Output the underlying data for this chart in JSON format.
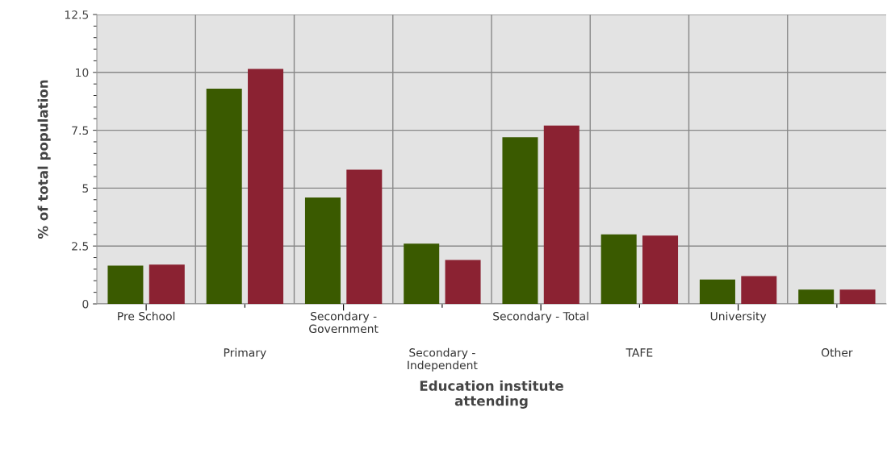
{
  "chart_data": {
    "type": "bar",
    "xlabel": "Education institute\nattending",
    "ylabel": "% of total population",
    "categories": [
      "Pre School",
      "Primary",
      "Secondary -\nGovernment",
      "Secondary -\nIndependent",
      "Secondary - Total",
      "TAFE",
      "University",
      "Other"
    ],
    "series": [
      {
        "color": "#3a5a00",
        "values": [
          1.65,
          9.3,
          4.6,
          2.6,
          7.2,
          3.0,
          1.05,
          0.62
        ]
      },
      {
        "color": "#8b2232",
        "values": [
          1.7,
          10.15,
          5.8,
          1.9,
          7.7,
          2.95,
          1.2,
          0.62
        ]
      }
    ],
    "ylim": [
      0,
      12.5
    ],
    "yticks": [
      0,
      2.5,
      5,
      7.5,
      10,
      12.5
    ],
    "grid": true,
    "legend": false
  }
}
